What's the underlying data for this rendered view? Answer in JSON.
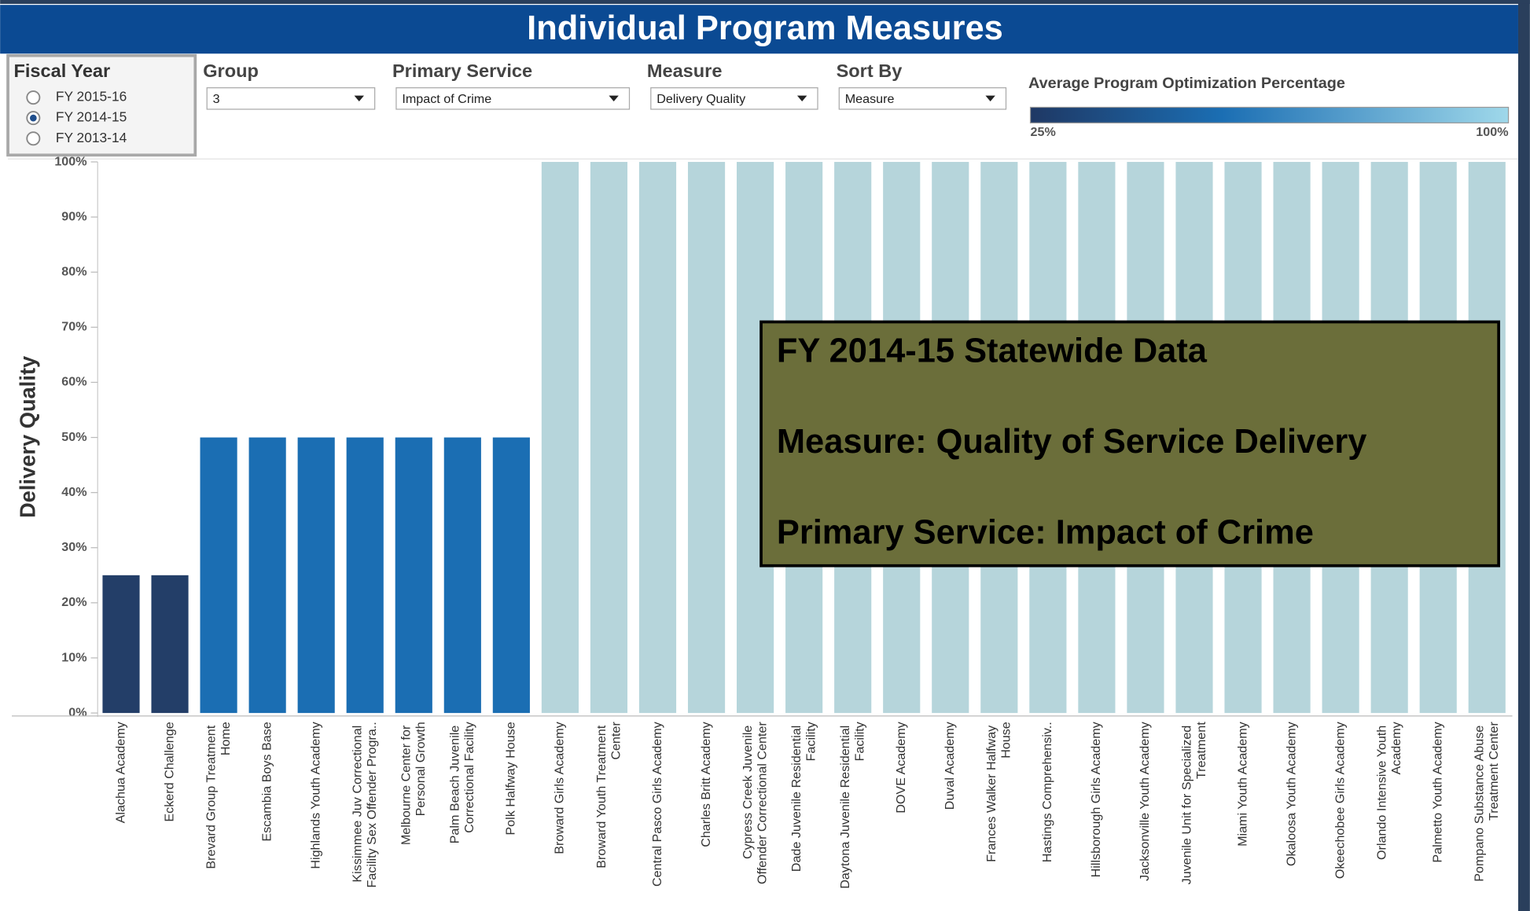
{
  "header": {
    "title": "Individual Program Measures"
  },
  "filters": {
    "fiscal_year": {
      "label": "Fiscal Year",
      "options": [
        {
          "label": "FY 2015-16",
          "checked": false
        },
        {
          "label": "FY 2014-15",
          "checked": true
        },
        {
          "label": "FY 2013-14",
          "checked": false
        }
      ]
    },
    "dropdowns": [
      {
        "label": "Group",
        "value": "3"
      },
      {
        "label": "Primary Service",
        "value": "Impact of Crime"
      },
      {
        "label": "Measure",
        "value": "Delivery Quality"
      },
      {
        "label": "Sort By",
        "value": "Measure"
      }
    ]
  },
  "legend": {
    "title": "Average Program Optimization Percentage",
    "min_label": "25%",
    "max_label": "100%"
  },
  "annotation": {
    "lines": [
      "FY 2014-15 Statewide Data",
      "Measure: Quality of Service Delivery",
      "Primary Service: Impact of Crime"
    ]
  },
  "chart_data": {
    "type": "bar",
    "y_label": "Delivery Quality",
    "categories": [
      "Alachua Academy",
      "Eckerd Challenge",
      "Brevard Group Treatment Home",
      "Escambia Boys Base",
      "Highlands Youth Academy",
      "Kissimmee Juv Correctional Facility Sex Offender Progra..",
      "Melbourne Center for Personal Growth",
      "Palm Beach Juvenile Correctional Facility",
      "Polk Halfway House",
      "Broward Girls Academy",
      "Broward Youth Treatment Center",
      "Central Pasco Girls Academy",
      "Charles Britt Academy",
      "Cypress Creek Juvenile Offender Correctional Center",
      "Dade Juvenile Residential Facility",
      "Daytona Juvenile Residential Facility",
      "DOVE Academy",
      "Duval Academy",
      "Frances Walker Halfway House",
      "Hastings Comprehensiv..",
      "Hillsborough Girls Academy",
      "Jacksonville Youth Academy",
      "Juvenile Unit for Specialized Treatment",
      "Miami Youth Academy",
      "Okaloosa Youth Academy",
      "Okeechobee Girls Academy",
      "Orlando Intensive Youth Academy",
      "Palmetto Youth Academy",
      "Pompano Substance Abuse Treatment Center"
    ],
    "values": [
      25,
      25,
      50,
      50,
      50,
      50,
      50,
      50,
      50,
      100,
      100,
      100,
      100,
      100,
      100,
      100,
      100,
      100,
      100,
      100,
      100,
      100,
      100,
      100,
      100,
      100,
      100,
      100,
      100
    ],
    "colors": [
      "#233e68",
      "#233e68",
      "#1b6eb3",
      "#1b6eb3",
      "#1b6eb3",
      "#1b6eb3",
      "#1b6eb3",
      "#1b6eb3",
      "#1b6eb3",
      "#b6d5db",
      "#b6d5db",
      "#b6d5db",
      "#b6d5db",
      "#b6d5db",
      "#b6d5db",
      "#b6d5db",
      "#b6d5db",
      "#b6d5db",
      "#b6d5db",
      "#b6d5db",
      "#b6d5db",
      "#b6d5db",
      "#b6d5db",
      "#b6d5db",
      "#b6d5db",
      "#b6d5db",
      "#b6d5db",
      "#b6d5db",
      "#b6d5db"
    ],
    "ylim": [
      0,
      100
    ],
    "yticks": [
      {
        "value": 0,
        "label": "0%"
      },
      {
        "value": 10,
        "label": "10%"
      },
      {
        "value": 20,
        "label": "20%"
      },
      {
        "value": 30,
        "label": "30%"
      },
      {
        "value": 40,
        "label": "40%"
      },
      {
        "value": 50,
        "label": "50%"
      },
      {
        "value": 60,
        "label": "60%"
      },
      {
        "value": 70,
        "label": "70%"
      },
      {
        "value": 80,
        "label": "80%"
      },
      {
        "value": 90,
        "label": "90%"
      },
      {
        "value": 100,
        "label": "100%"
      }
    ],
    "grid": false
  }
}
